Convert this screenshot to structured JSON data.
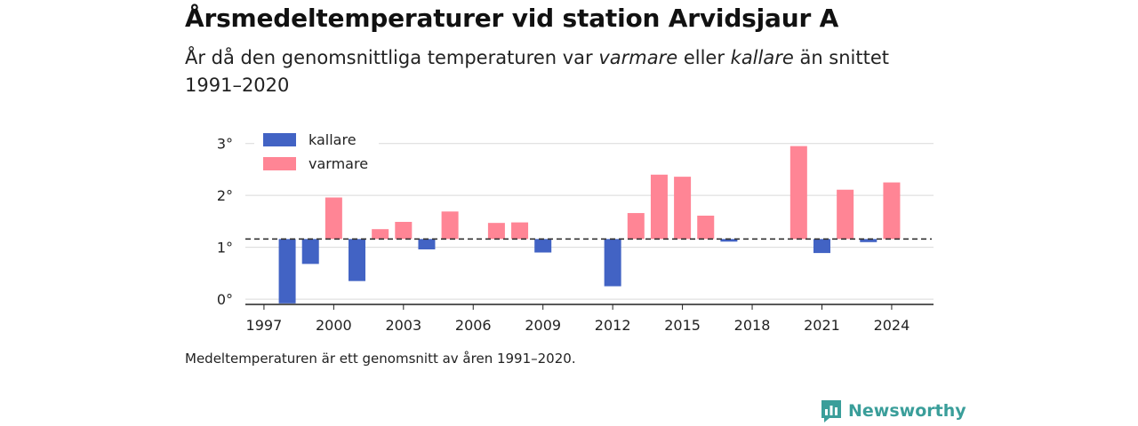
{
  "header": {
    "title": "Årsmedeltemperaturer vid station Arvidsjaur A",
    "subtitle_part1": "År då den genomsnittliga temperaturen var ",
    "subtitle_warm": "varmare",
    "subtitle_part2": " eller ",
    "subtitle_cold": "kallare",
    "subtitle_part3": " än snittet 1991–2020"
  },
  "footnote": "Medeltemperaturen är ett genomsnitt av åren 1991–2020.",
  "brand": {
    "name": "Newsworthy",
    "icon": "newsworthy-logo-icon",
    "color": "#3a9e9a"
  },
  "chart_data": {
    "type": "bar",
    "title": "",
    "xlabel": "",
    "ylabel": "",
    "baseline": 1.16,
    "baseline_style": "dashed",
    "ylim": [
      -0.1,
      3.2
    ],
    "y_ticks": [
      0,
      1,
      2,
      3
    ],
    "y_tick_labels": [
      "0°",
      "1°",
      "2°",
      "3°"
    ],
    "x_ticks": [
      1997,
      2000,
      2003,
      2006,
      2009,
      2012,
      2015,
      2018,
      2021,
      2024
    ],
    "x_tick_labels": [
      "1997",
      "2000",
      "2003",
      "2006",
      "2009",
      "2012",
      "2015",
      "2018",
      "2021",
      "2024"
    ],
    "xlim": [
      1996.2,
      2025.8
    ],
    "grid": true,
    "legend": "top-left",
    "colors": {
      "kallare": "#4263c4",
      "varmare": "#ff8595"
    },
    "legend_entries": [
      {
        "name": "kallare",
        "color": "#4263c4"
      },
      {
        "name": "varmare",
        "color": "#ff8595"
      }
    ],
    "x": [
      1998,
      1999,
      2000,
      2001,
      2002,
      2003,
      2004,
      2005,
      2007,
      2008,
      2009,
      2012,
      2013,
      2014,
      2015,
      2016,
      2017,
      2020,
      2021,
      2022,
      2023,
      2024
    ],
    "values": [
      -0.08,
      0.68,
      1.96,
      0.35,
      1.35,
      1.49,
      0.96,
      1.69,
      1.47,
      1.48,
      0.9,
      0.25,
      1.66,
      2.4,
      2.36,
      1.61,
      1.11,
      2.95,
      0.89,
      2.11,
      1.1,
      2.25
    ]
  }
}
